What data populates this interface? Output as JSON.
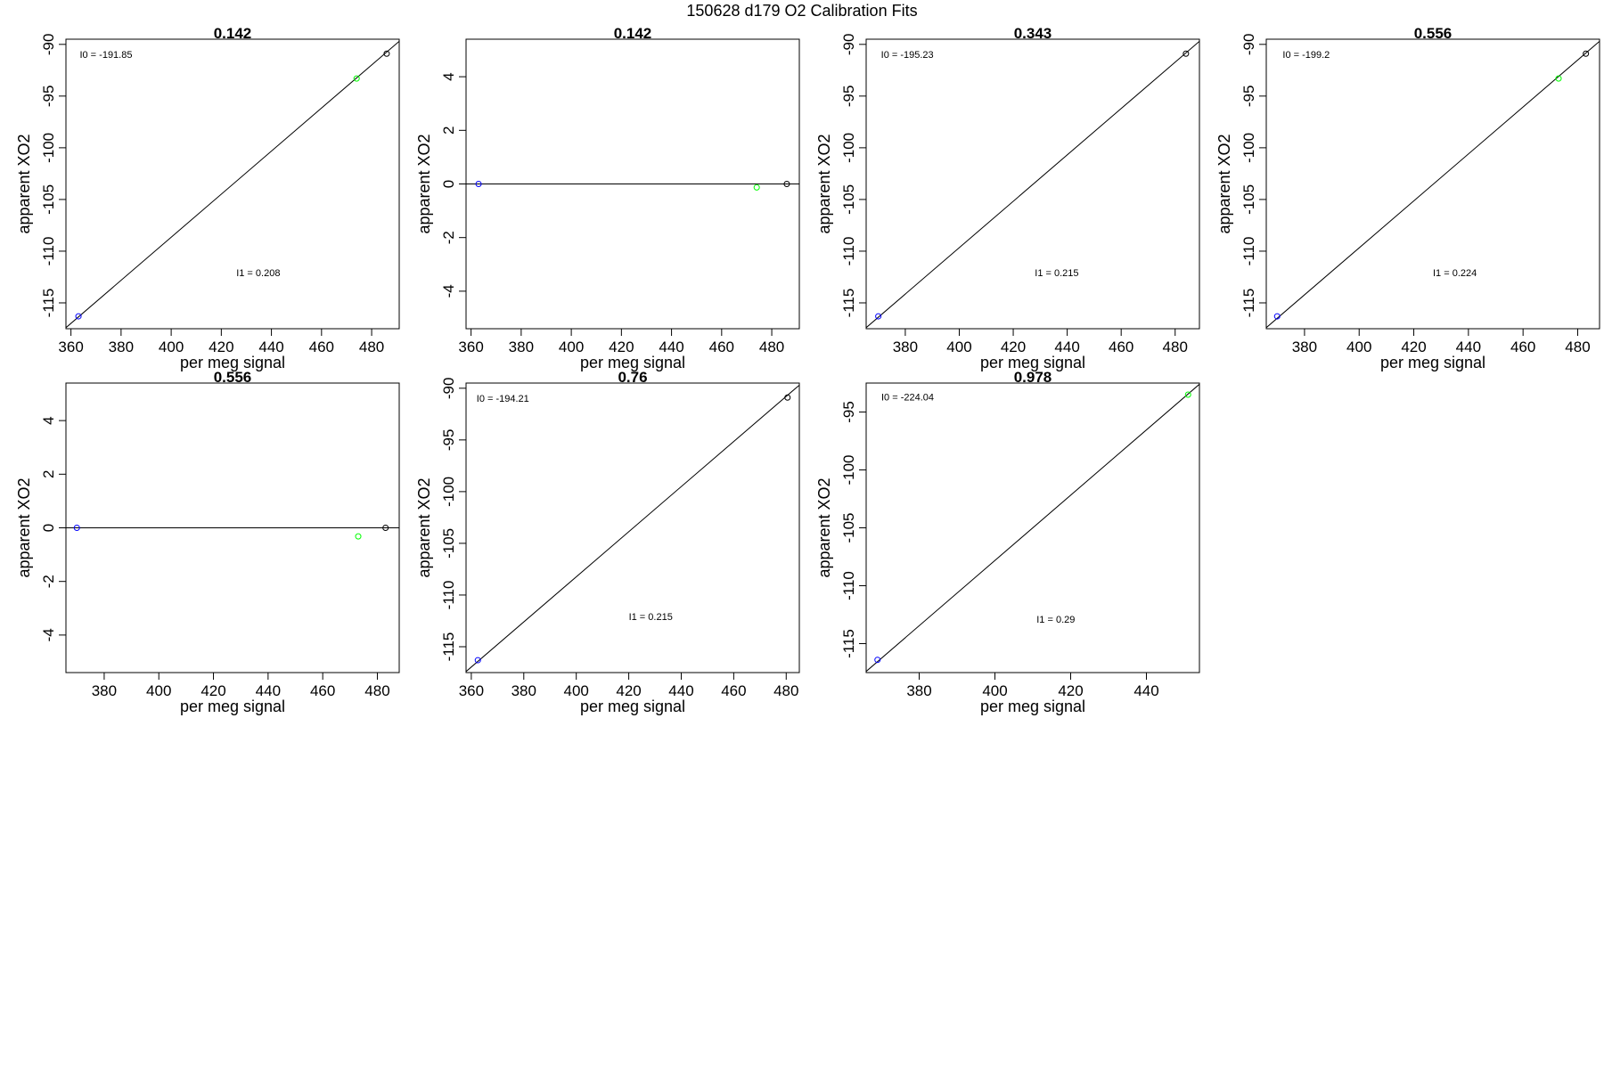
{
  "page_title": "150628   d179   O2 Calibration Fits",
  "colors": {
    "blue": "#0000ff",
    "green": "#00ff00",
    "black": "#000000",
    "line": "#000000",
    "frame": "#000000"
  },
  "chart_data": [
    {
      "type": "scatter",
      "title": "0.142",
      "xlabel": "per meg signal",
      "ylabel": "apparent XO2",
      "xlim": [
        358,
        491
      ],
      "ylim": [
        -117.5,
        -89.5
      ],
      "xticks": [
        360,
        380,
        400,
        420,
        440,
        460,
        480
      ],
      "yticks": [
        -90,
        -95,
        -100,
        -105,
        -110,
        -115
      ],
      "points": [
        {
          "x": 363,
          "y": -116.3,
          "color": "blue"
        },
        {
          "x": 474,
          "y": -93.3,
          "color": "green"
        },
        {
          "x": 486,
          "y": -90.9,
          "color": "black"
        }
      ],
      "fit_line": [
        [
          358,
          -117.4
        ],
        [
          491,
          -89.7
        ]
      ],
      "annotations": [
        {
          "text": "I0 =  -191.85",
          "x": 363.5,
          "y": -91.3
        },
        {
          "text": "I1 =  0.208",
          "x": 426,
          "y": -112.4
        }
      ]
    },
    {
      "type": "scatter",
      "title": "0.142",
      "xlabel": "per meg signal",
      "ylabel": "apparent XO2",
      "xlim": [
        358,
        491
      ],
      "ylim": [
        -5.4,
        5.4
      ],
      "xticks": [
        360,
        380,
        400,
        420,
        440,
        460,
        480
      ],
      "yticks": [
        4,
        2,
        0,
        -2,
        -4
      ],
      "points": [
        {
          "x": 363,
          "y": 0,
          "color": "blue"
        },
        {
          "x": 474,
          "y": -0.13,
          "color": "green"
        },
        {
          "x": 486,
          "y": 0,
          "color": "black"
        }
      ],
      "fit_line": [
        [
          358,
          0
        ],
        [
          491,
          0
        ]
      ],
      "annotations": []
    },
    {
      "type": "scatter",
      "title": "0.343",
      "xlabel": "per meg signal",
      "ylabel": "apparent XO2",
      "xlim": [
        365.5,
        489
      ],
      "ylim": [
        -117.5,
        -89.5
      ],
      "xticks": [
        380,
        400,
        420,
        440,
        460,
        480
      ],
      "yticks": [
        -90,
        -95,
        -100,
        -105,
        -110,
        -115
      ],
      "points": [
        {
          "x": 370,
          "y": -116.3,
          "color": "blue"
        },
        {
          "x": 484,
          "y": -90.9,
          "color": "black"
        }
      ],
      "fit_line": [
        [
          365.5,
          -117.4
        ],
        [
          489,
          -89.7
        ]
      ],
      "annotations": [
        {
          "text": "I0 =  -195.23",
          "x": 371,
          "y": -91.3
        },
        {
          "text": "I1 =  0.215",
          "x": 428,
          "y": -112.4
        }
      ]
    },
    {
      "type": "scatter",
      "title": "0.556",
      "xlabel": "per meg signal",
      "ylabel": "apparent XO2",
      "xlim": [
        366,
        488
      ],
      "ylim": [
        -117.5,
        -89.5
      ],
      "xticks": [
        380,
        400,
        420,
        440,
        460,
        480
      ],
      "yticks": [
        -90,
        -95,
        -100,
        -105,
        -110,
        -115
      ],
      "points": [
        {
          "x": 370,
          "y": -116.3,
          "color": "blue"
        },
        {
          "x": 473,
          "y": -93.3,
          "color": "green"
        },
        {
          "x": 483,
          "y": -90.9,
          "color": "black"
        }
      ],
      "fit_line": [
        [
          366,
          -117.4
        ],
        [
          488,
          -89.7
        ]
      ],
      "annotations": [
        {
          "text": "I0 =  -199.2",
          "x": 372,
          "y": -91.3
        },
        {
          "text": "I1 =  0.224",
          "x": 427,
          "y": -112.4
        }
      ]
    },
    {
      "type": "scatter",
      "title": "0.556",
      "xlabel": "per meg signal",
      "ylabel": "apparent XO2",
      "xlim": [
        366,
        488
      ],
      "ylim": [
        -5.4,
        5.4
      ],
      "xticks": [
        380,
        400,
        420,
        440,
        460,
        480
      ],
      "yticks": [
        4,
        2,
        0,
        -2,
        -4
      ],
      "points": [
        {
          "x": 370,
          "y": 0,
          "color": "blue"
        },
        {
          "x": 473,
          "y": -0.32,
          "color": "green"
        },
        {
          "x": 483,
          "y": 0,
          "color": "black"
        }
      ],
      "fit_line": [
        [
          366,
          0
        ],
        [
          488,
          0
        ]
      ],
      "annotations": []
    },
    {
      "type": "scatter",
      "title": "0.76",
      "xlabel": "per meg signal",
      "ylabel": "apparent XO2",
      "xlim": [
        358,
        485
      ],
      "ylim": [
        -117.5,
        -89.5
      ],
      "xticks": [
        360,
        380,
        400,
        420,
        440,
        460,
        480
      ],
      "yticks": [
        -90,
        -95,
        -100,
        -105,
        -110,
        -115
      ],
      "points": [
        {
          "x": 362.5,
          "y": -116.3,
          "color": "blue"
        },
        {
          "x": 480.5,
          "y": -90.9,
          "color": "black"
        }
      ],
      "fit_line": [
        [
          358,
          -117.4
        ],
        [
          485,
          -89.7
        ]
      ],
      "annotations": [
        {
          "text": "I0 =  -194.21",
          "x": 362,
          "y": -91.3
        },
        {
          "text": "I1 =  0.215",
          "x": 420,
          "y": -112.4
        }
      ]
    },
    {
      "type": "scatter",
      "title": "0.978",
      "xlabel": "per meg signal",
      "ylabel": "apparent XO2",
      "xlim": [
        366,
        454
      ],
      "ylim": [
        -117.5,
        -92.5
      ],
      "xticks": [
        380,
        400,
        420,
        440
      ],
      "yticks": [
        -95,
        -100,
        -105,
        -110,
        -115
      ],
      "points": [
        {
          "x": 369,
          "y": -116.4,
          "color": "blue"
        },
        {
          "x": 451,
          "y": -93.5,
          "color": "green"
        }
      ],
      "fit_line": [
        [
          366,
          -117.4
        ],
        [
          454,
          -92.6
        ]
      ],
      "annotations": [
        {
          "text": "I0 =  -224.04",
          "x": 370,
          "y": -94.0
        },
        {
          "text": "I1 =  0.29",
          "x": 411,
          "y": -113.2
        }
      ]
    }
  ]
}
